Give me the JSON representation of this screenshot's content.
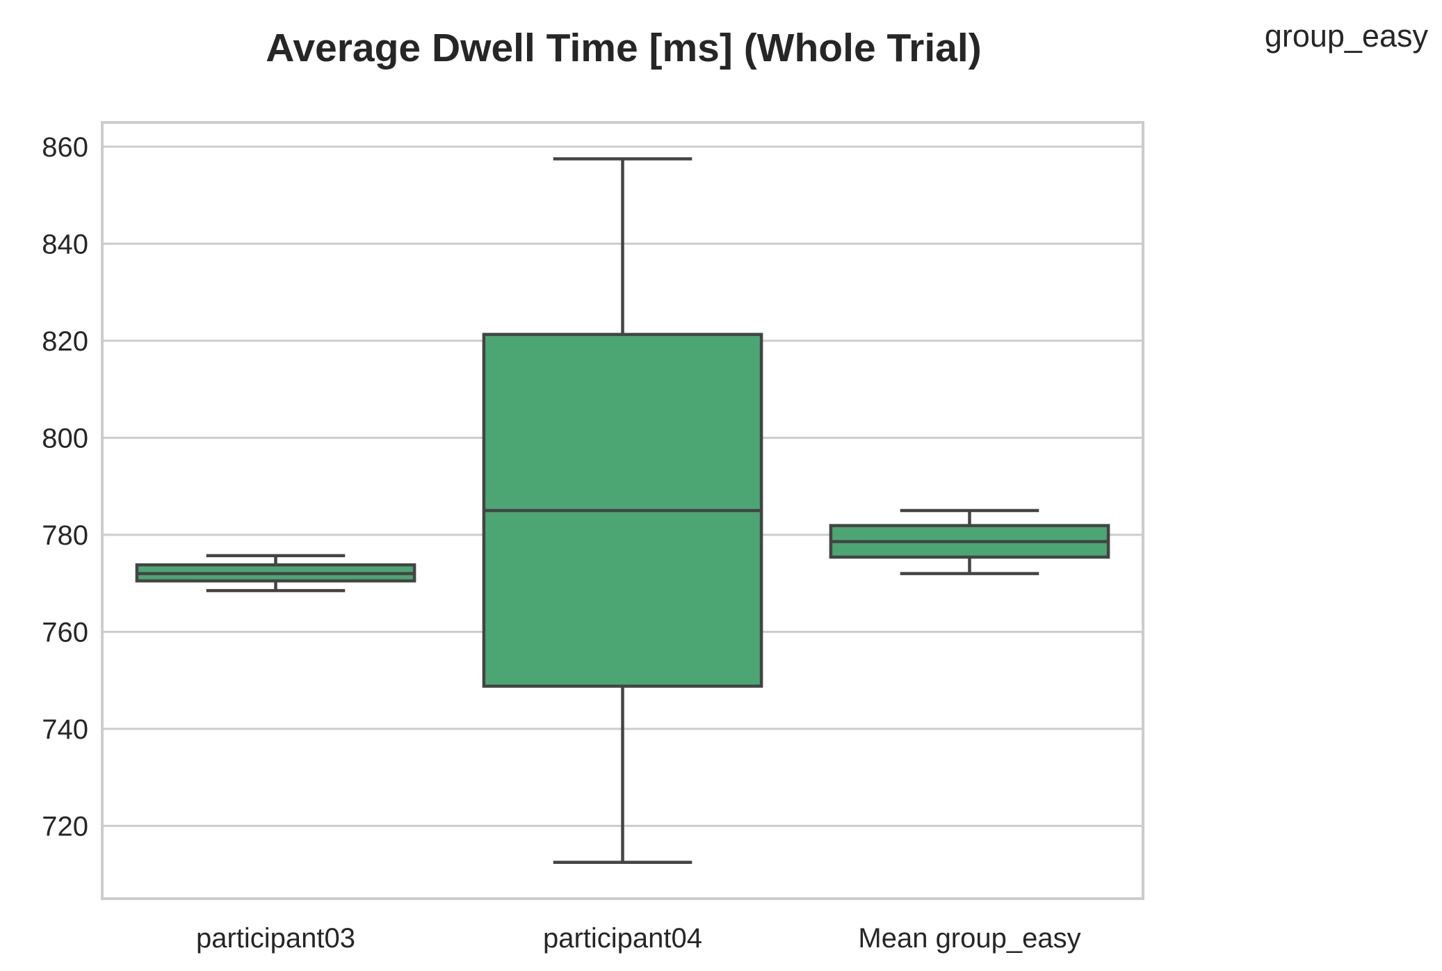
{
  "chart_data": {
    "type": "box",
    "title": "Average Dwell Time [ms] (Whole Trial)",
    "legend_title": "group_easy",
    "legend_position": "top-right",
    "xlabel": "",
    "ylabel": "",
    "ylim": [
      705,
      865
    ],
    "yticks": [
      720,
      740,
      760,
      780,
      800,
      820,
      840,
      860
    ],
    "grid": true,
    "colors": {
      "box_fill": "#4ca674",
      "line": "#444444",
      "grid": "#cccccc",
      "frame": "#cccccc"
    },
    "categories": [
      "participant03",
      "participant04",
      "Mean group_easy"
    ],
    "boxes": [
      {
        "label": "participant03",
        "whisker_low": 768.5,
        "q1": 770.5,
        "median": 772.0,
        "q3": 773.8,
        "whisker_high": 775.7
      },
      {
        "label": "participant04",
        "whisker_low": 712.5,
        "q1": 748.8,
        "median": 785.0,
        "q3": 821.3,
        "whisker_high": 857.5
      },
      {
        "label": "Mean group_easy",
        "whisker_low": 772.0,
        "q1": 775.4,
        "median": 778.6,
        "q3": 781.9,
        "whisker_high": 785.0
      }
    ]
  }
}
